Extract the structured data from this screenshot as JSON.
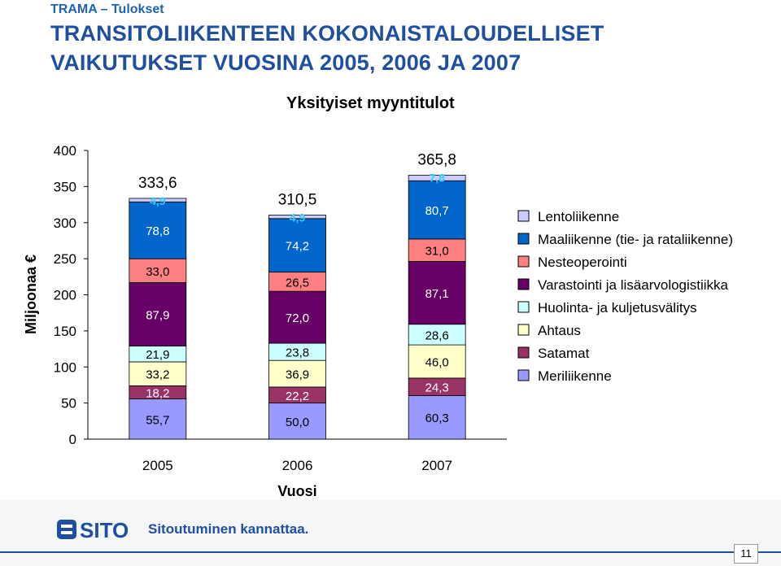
{
  "header": {
    "tag": "TRAMA – Tulokset",
    "title_line1": "TRANSITOLIIKENTEEN KOKONAISTALOUDELLISET",
    "title_line2": "VAIKUTUKSET VUOSINA 2005, 2006 JA 2007"
  },
  "chart_data": {
    "type": "bar",
    "stacked": true,
    "title": "Yksityiset myyntitulot",
    "xlabel": "Vuosi",
    "ylabel": "Miljoonaa €",
    "ylim": [
      0,
      400
    ],
    "yticks": [
      "0",
      "50",
      "100",
      "150",
      "200",
      "250",
      "300",
      "350",
      "400"
    ],
    "grid": false,
    "legend_position": "right",
    "categories": [
      "2005",
      "2006",
      "2007"
    ],
    "totals": [
      "333,6",
      "310,5",
      "365,8"
    ],
    "series": [
      {
        "name": "Meriliikenne",
        "color": "#9999ff",
        "values": [
          55.7,
          50.0,
          60.3
        ],
        "labels": [
          "55,7",
          "50,0",
          "60,3"
        ]
      },
      {
        "name": "Satamat",
        "color": "#993366",
        "values": [
          18.2,
          22.2,
          24.3
        ],
        "labels": [
          "18,2",
          "22,2",
          "24,3"
        ]
      },
      {
        "name": "Ahtaus",
        "color": "#ffffcc",
        "values": [
          33.2,
          36.9,
          46.0
        ],
        "labels": [
          "33,2",
          "36,9",
          "46,0"
        ]
      },
      {
        "name": "Huolinta- ja kuljetusvälitys",
        "color": "#ccffff",
        "values": [
          21.9,
          23.8,
          28.6
        ],
        "labels": [
          "21,9",
          "23,8",
          "28,6"
        ]
      },
      {
        "name": "Varastointi ja lisäarvologistiikka",
        "color": "#660066",
        "values": [
          87.9,
          72.0,
          87.1
        ],
        "labels": [
          "87,9",
          "72,0",
          "87,1"
        ]
      },
      {
        "name": "Nesteoperointi",
        "color": "#ff8080",
        "values": [
          33.0,
          26.5,
          31.0
        ],
        "labels": [
          "33,0",
          "26,5",
          "31,0"
        ]
      },
      {
        "name": "Maaliikenne (tie- ja rataliikenne)",
        "color": "#0066cc",
        "values": [
          78.8,
          74.2,
          80.7
        ],
        "labels": [
          "78,8",
          "74,2",
          "80,7"
        ]
      },
      {
        "name": "Lentoliikenne",
        "color": "#ccccff",
        "values": [
          4.9,
          4.9,
          7.8
        ],
        "labels": [
          "4,9",
          "4,9",
          "7,8"
        ]
      }
    ]
  },
  "colors": {
    "title": "#1f4fa0",
    "tag": "#1f63b0",
    "small_segment_label": "#33ccff"
  },
  "footer": {
    "logo_text": "SITO",
    "tagline": "Sitoutuminen kannattaa.",
    "page_number": "11"
  }
}
